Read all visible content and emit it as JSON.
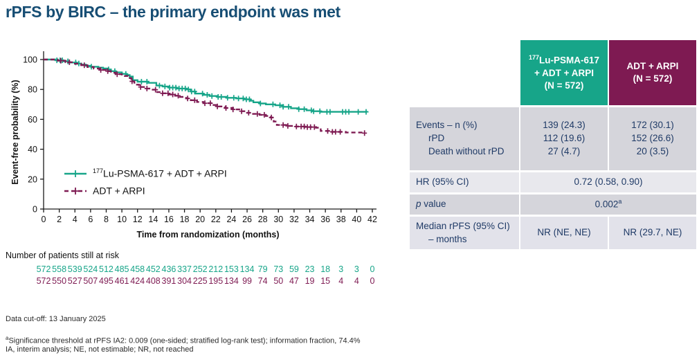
{
  "title": "rPFS by BIRC – the primary endpoint was met",
  "colors": {
    "title_navy": "#174e74",
    "table_text_navy": "#1f3a66",
    "arm1_green": "#17a589",
    "arm2_maroon": "#7e1a52",
    "axis_black": "#1a1a1a"
  },
  "chart_data": {
    "type": "line",
    "subtype": "kaplan-meier-step",
    "xlabel": "Time from randomization (months)",
    "ylabel": "Event-free probability (%)",
    "xlim": [
      0,
      42
    ],
    "ylim": [
      0,
      100
    ],
    "xticks": [
      0,
      2,
      4,
      6,
      8,
      10,
      12,
      14,
      16,
      18,
      20,
      22,
      24,
      26,
      28,
      30,
      32,
      34,
      36,
      38,
      40,
      42
    ],
    "yticks": [
      0,
      20,
      40,
      60,
      80,
      100
    ],
    "grid": false,
    "legend_position": "inside lower-left",
    "series": [
      {
        "name": "177Lu-PSMA-617 + ADT + ARPI",
        "color": "#17a589",
        "line_style": "solid",
        "steps": [
          [
            0,
            100
          ],
          [
            1.5,
            99.5
          ],
          [
            2.5,
            98.8
          ],
          [
            3.2,
            98
          ],
          [
            4.2,
            97.3
          ],
          [
            4.8,
            96.6
          ],
          [
            5.4,
            95.8
          ],
          [
            6,
            95.2
          ],
          [
            7,
            94.6
          ],
          [
            7.6,
            94
          ],
          [
            8.2,
            93.4
          ],
          [
            8.6,
            92.2
          ],
          [
            9.2,
            91.4
          ],
          [
            10,
            90.4
          ],
          [
            10.6,
            89.6
          ],
          [
            11,
            88.6
          ],
          [
            11.4,
            86.2
          ],
          [
            12,
            85.2
          ],
          [
            13.4,
            84.4
          ],
          [
            14.4,
            82.6
          ],
          [
            15.2,
            82
          ],
          [
            16,
            81.2
          ],
          [
            17,
            80.6
          ],
          [
            18.2,
            80
          ],
          [
            18.8,
            78.6
          ],
          [
            19.4,
            77.2
          ],
          [
            20.4,
            76.4
          ],
          [
            21.2,
            75.6
          ],
          [
            22.2,
            75
          ],
          [
            23.4,
            74.4
          ],
          [
            24.6,
            74
          ],
          [
            25.6,
            73.4
          ],
          [
            26.4,
            72.4
          ],
          [
            26.8,
            71.4
          ],
          [
            27.6,
            70.6
          ],
          [
            28.4,
            70
          ],
          [
            29.6,
            69.4
          ],
          [
            30.6,
            68.4
          ],
          [
            31.6,
            67.4
          ],
          [
            32.6,
            66.8
          ],
          [
            33.6,
            66
          ],
          [
            34.4,
            65.4
          ],
          [
            35.4,
            65
          ],
          [
            41.3,
            64.8
          ]
        ],
        "censor_marks_months": [
          1.7,
          2.1,
          2.4,
          3.1,
          4.1,
          4.5,
          6.1,
          8.3,
          9.1,
          10.5,
          12.5,
          13.2,
          14.8,
          15.5,
          16.1,
          16.5,
          16.9,
          17.3,
          17.7,
          18.1,
          18.5,
          18.9,
          19.3,
          20.3,
          20.9,
          21.5,
          22.3,
          22.7,
          23.5,
          24.3,
          24.9,
          25.5,
          25.9,
          26.3,
          27.7,
          29.3,
          30.2,
          30.6,
          31.3,
          32.6,
          33.3,
          34.2,
          34.5,
          35.3,
          36.2,
          36.6,
          38.2,
          38.6,
          39.0,
          40.2,
          41.2
        ]
      },
      {
        "name": "ADT + ARPI",
        "color": "#7e1a52",
        "line_style": "dashed",
        "steps": [
          [
            0,
            100
          ],
          [
            1.8,
            99.2
          ],
          [
            2.8,
            98.2
          ],
          [
            3.8,
            97.2
          ],
          [
            4.8,
            96.2
          ],
          [
            5.6,
            95
          ],
          [
            6.4,
            94
          ],
          [
            7.2,
            93
          ],
          [
            8,
            92.2
          ],
          [
            8.6,
            91.2
          ],
          [
            9.2,
            90.2
          ],
          [
            10,
            89
          ],
          [
            10.8,
            87.6
          ],
          [
            11.2,
            85.4
          ],
          [
            11.6,
            83.2
          ],
          [
            12.2,
            81.6
          ],
          [
            13,
            80.6
          ],
          [
            13.8,
            79.8
          ],
          [
            14.4,
            78.2
          ],
          [
            15.2,
            77.4
          ],
          [
            16,
            76.6
          ],
          [
            16.8,
            75.8
          ],
          [
            17.4,
            75
          ],
          [
            18.2,
            74
          ],
          [
            18.8,
            72.8
          ],
          [
            19.6,
            71.6
          ],
          [
            20.4,
            70.8
          ],
          [
            21.4,
            69.6
          ],
          [
            22.2,
            68.6
          ],
          [
            23.2,
            67.6
          ],
          [
            24.2,
            66.6
          ],
          [
            25.2,
            65.4
          ],
          [
            26,
            64.4
          ],
          [
            26.6,
            63.6
          ],
          [
            27.6,
            63
          ],
          [
            28.4,
            62.2
          ],
          [
            29,
            61.2
          ],
          [
            29.4,
            58.5
          ],
          [
            29.8,
            56.2
          ],
          [
            31,
            55.6
          ],
          [
            32,
            55.2
          ],
          [
            33.4,
            54.8
          ],
          [
            34.8,
            54.4
          ],
          [
            35.4,
            52.2
          ],
          [
            36.4,
            51.6
          ],
          [
            38.6,
            51.2
          ],
          [
            41,
            50.8
          ]
        ],
        "censor_marks_months": [
          2.2,
          3.3,
          5.2,
          7.3,
          8.2,
          9.4,
          11.3,
          12.4,
          13.2,
          14.3,
          15.2,
          15.9,
          16.5,
          17.2,
          18.4,
          19.3,
          20.6,
          21.3,
          22.2,
          23.3,
          24.2,
          25.3,
          26.2,
          27.3,
          28.2,
          29.1,
          30.6,
          31.2,
          32.3,
          32.9,
          33.3,
          33.7,
          34.1,
          34.6,
          36.3,
          36.9,
          37.3,
          37.9,
          41.0
        ]
      }
    ]
  },
  "legend": [
    {
      "sup": "177",
      "label": "Lu-PSMA-617 + ADT + ARPI"
    },
    {
      "sup": "",
      "label": "ADT + ARPI"
    }
  ],
  "at_risk": {
    "label": "Number of patients still at risk",
    "arm1": [
      572,
      558,
      539,
      524,
      512,
      485,
      458,
      452,
      436,
      337,
      252,
      212,
      153,
      134,
      79,
      73,
      59,
      23,
      18,
      3,
      3,
      0
    ],
    "arm2": [
      572,
      550,
      527,
      507,
      495,
      461,
      424,
      408,
      391,
      304,
      225,
      195,
      134,
      99,
      74,
      50,
      47,
      19,
      15,
      4,
      4,
      0
    ]
  },
  "table": {
    "col1_header": {
      "sup": "177",
      "line1": "Lu-PSMA-617",
      "line2": "+ ADT + ARPI",
      "line3": "(N = 572)"
    },
    "col2_header": {
      "line1": "ADT + ARPI",
      "line2": "(N = 572)"
    },
    "rows": {
      "events": {
        "labels": [
          "Events – n (%)",
          "rPD",
          "Death without rPD"
        ],
        "col1": [
          "139 (24.3)",
          "112 (19.6)",
          "27 (4.7)"
        ],
        "col2": [
          "172 (30.1)",
          "152 (26.6)",
          "20 (3.5)"
        ]
      },
      "hr": {
        "label": "HR (95% CI)",
        "value": "0.72 (0.58, 0.90)"
      },
      "pvalue": {
        "label_italic": "p",
        "label_rest": " value",
        "value": "0.002",
        "value_sup": "a"
      },
      "median": {
        "label_line1": "Median rPFS (95% CI)",
        "label_line2": "– months",
        "col1": "NR (NE, NE)",
        "col2": "NR (29.7, NE)"
      }
    }
  },
  "footnotes": {
    "cutoff": "Data cut-off: 13 January 2025",
    "sig_sup": "a",
    "sig": "Significance threshold at rPFS IA2: 0.009 (one-sided; stratified log-rank test); information fraction, 74.4%",
    "abbrev": "IA, interim analysis; NE, not estimable; NR, not reached"
  }
}
